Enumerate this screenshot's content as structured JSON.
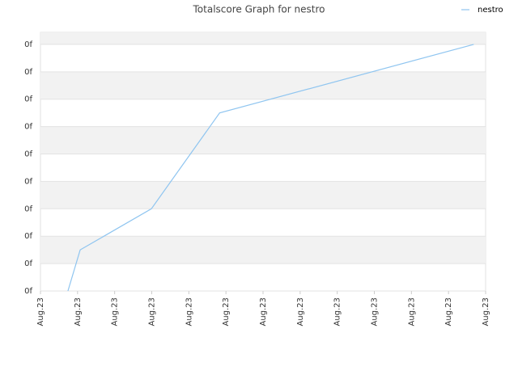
{
  "chart_data": {
    "type": "line",
    "title": "Totalscore Graph for nestro",
    "x": [
      0.74,
      1.07,
      2.99,
      4.83,
      11.68
    ],
    "series": [
      {
        "name": "nestro",
        "color": "#8fc5f0",
        "values": [
          0,
          1.5,
          3,
          6.5,
          9
        ]
      }
    ],
    "xlim": [
      0,
      12
    ],
    "xticks": [
      {
        "value": 0,
        "label": "Aug.23"
      },
      {
        "value": 1,
        "label": "Aug.23"
      },
      {
        "value": 2,
        "label": "Aug.23"
      },
      {
        "value": 3,
        "label": "Aug.23"
      },
      {
        "value": 4,
        "label": "Aug.23"
      },
      {
        "value": 5,
        "label": "Aug.23"
      },
      {
        "value": 6,
        "label": "Aug.23"
      },
      {
        "value": 7,
        "label": "Aug.23"
      },
      {
        "value": 8,
        "label": "Aug.23"
      },
      {
        "value": 9,
        "label": "Aug.23"
      },
      {
        "value": 10,
        "label": "Aug.23"
      },
      {
        "value": 11,
        "label": "Aug.23"
      },
      {
        "value": 12,
        "label": "Aug.23"
      }
    ],
    "ylim": [
      0,
      9.44
    ],
    "yticks": [
      {
        "value": 0,
        "label": "0f"
      },
      {
        "value": 1,
        "label": "0f"
      },
      {
        "value": 2,
        "label": "0f"
      },
      {
        "value": 3,
        "label": "0f"
      },
      {
        "value": 4,
        "label": "0f"
      },
      {
        "value": 5,
        "label": "0f"
      },
      {
        "value": 6,
        "label": "0f"
      },
      {
        "value": 7,
        "label": "0f"
      },
      {
        "value": 8,
        "label": "0f"
      },
      {
        "value": 9,
        "label": "0f"
      }
    ],
    "grid": true
  }
}
